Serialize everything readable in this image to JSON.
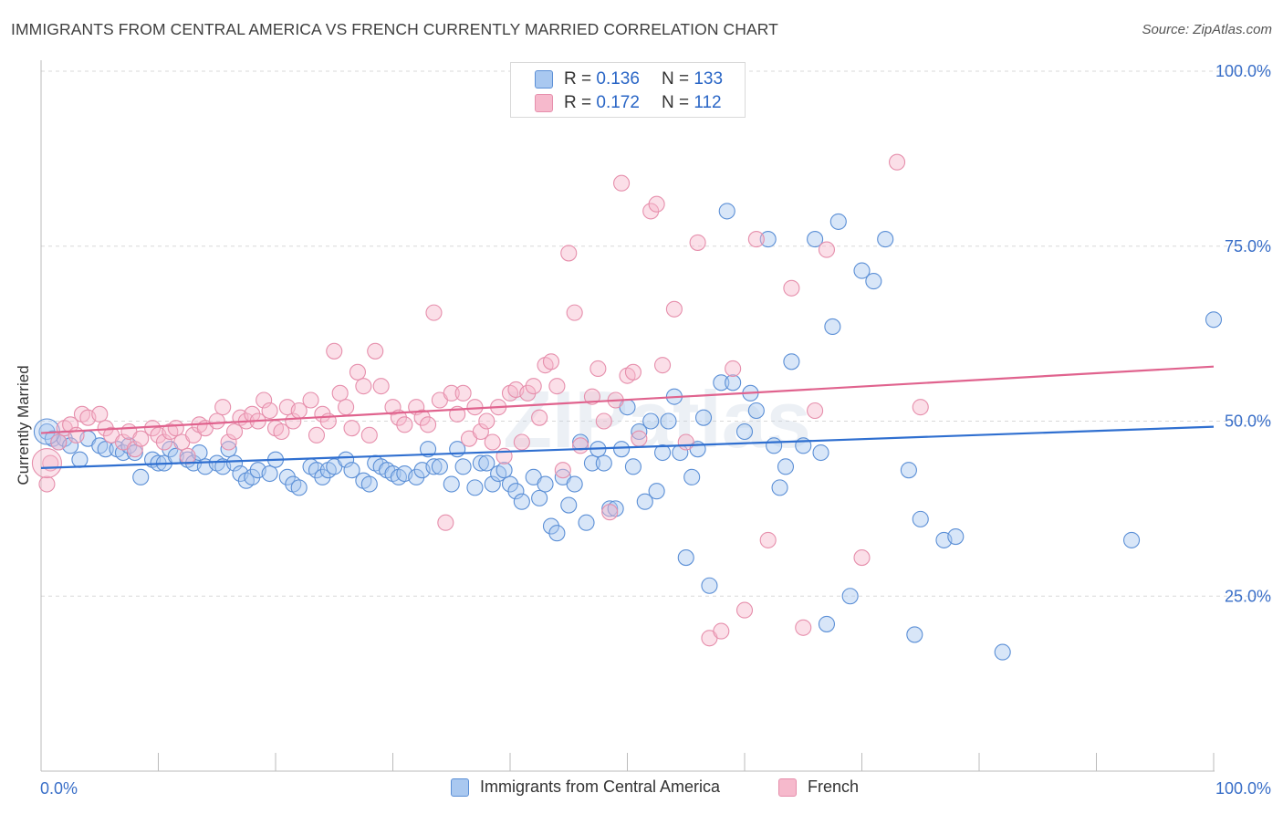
{
  "header": {
    "title": "IMMIGRANTS FROM CENTRAL AMERICA VS FRENCH CURRENTLY MARRIED CORRELATION CHART",
    "source": "Source: ZipAtlas.com"
  },
  "watermark": "ZIPatlas",
  "legend": {
    "rows": [
      {
        "r_label": "R =",
        "r_value": "0.136",
        "n_label": "N =",
        "n_value": "133"
      },
      {
        "r_label": "R =",
        "r_value": "0.172",
        "n_label": "N =",
        "n_value": "112"
      }
    ]
  },
  "colors": {
    "blue_fill": "#a9c8f0",
    "blue_stroke": "#5b8fd6",
    "blue_line": "#2f6fd0",
    "pink_fill": "#f6b9cc",
    "pink_stroke": "#e68fac",
    "pink_line": "#e0638e",
    "axis_label": "#3a6fc8",
    "grid": "#d8d8d8"
  },
  "chart_data": {
    "type": "scatter",
    "title": "IMMIGRANTS FROM CENTRAL AMERICA VS FRENCH CURRENTLY MARRIED CORRELATION CHART",
    "xlabel": "",
    "ylabel": "Currently Married",
    "xlim": [
      0,
      100
    ],
    "ylim": [
      0,
      100
    ],
    "x_tick_labels": [
      "0.0%",
      "100.0%"
    ],
    "y_tick_labels": [
      "25.0%",
      "50.0%",
      "75.0%",
      "100.0%"
    ],
    "y_ticks": [
      25,
      50,
      75,
      100
    ],
    "grid": true,
    "legend_position": "top-center",
    "series": [
      {
        "name": "Immigrants from Central America",
        "r": 0.136,
        "n": 133,
        "trend": {
          "x0": 0,
          "y0": 43.3,
          "x1": 100,
          "y1": 49.2
        },
        "points": [
          [
            0.5,
            48.5
          ],
          [
            1,
            47.5
          ],
          [
            1.5,
            47
          ],
          [
            2,
            47.5
          ],
          [
            2.5,
            46.5
          ],
          [
            3.3,
            44.5
          ],
          [
            4,
            47.5
          ],
          [
            5,
            46.5
          ],
          [
            5.5,
            46
          ],
          [
            6.5,
            46
          ],
          [
            7,
            45.5
          ],
          [
            7.5,
            46.5
          ],
          [
            8,
            45.5
          ],
          [
            8.5,
            42
          ],
          [
            9.5,
            44.5
          ],
          [
            10,
            44
          ],
          [
            10.5,
            44
          ],
          [
            11,
            46
          ],
          [
            11.5,
            45
          ],
          [
            12.5,
            44.5
          ],
          [
            13,
            44
          ],
          [
            13.5,
            45.5
          ],
          [
            14,
            43.5
          ],
          [
            15,
            44
          ],
          [
            15.5,
            43.5
          ],
          [
            16,
            46
          ],
          [
            16.5,
            44
          ],
          [
            17,
            42.5
          ],
          [
            17.5,
            41.5
          ],
          [
            18,
            42
          ],
          [
            18.5,
            43
          ],
          [
            19.5,
            42.5
          ],
          [
            20,
            44.5
          ],
          [
            21,
            42
          ],
          [
            21.5,
            41
          ],
          [
            22,
            40.5
          ],
          [
            23,
            43.5
          ],
          [
            23.5,
            43
          ],
          [
            24,
            42
          ],
          [
            24.5,
            43
          ],
          [
            25,
            43.5
          ],
          [
            26,
            44.5
          ],
          [
            26.5,
            43
          ],
          [
            27.5,
            41.5
          ],
          [
            28,
            41
          ],
          [
            28.5,
            44
          ],
          [
            29,
            43.5
          ],
          [
            29.5,
            43
          ],
          [
            30,
            42.5
          ],
          [
            30.5,
            42
          ],
          [
            31,
            42.5
          ],
          [
            32,
            42
          ],
          [
            32.5,
            43
          ],
          [
            33,
            46
          ],
          [
            33.5,
            43.5
          ],
          [
            34,
            43.5
          ],
          [
            35,
            41
          ],
          [
            35.5,
            46
          ],
          [
            36,
            43.5
          ],
          [
            37,
            40.5
          ],
          [
            37.5,
            44
          ],
          [
            38,
            44
          ],
          [
            38.5,
            41
          ],
          [
            39,
            42.5
          ],
          [
            39.5,
            43
          ],
          [
            40,
            41
          ],
          [
            40.5,
            40
          ],
          [
            41,
            38.5
          ],
          [
            42,
            42
          ],
          [
            42.5,
            39
          ],
          [
            43,
            41
          ],
          [
            43.5,
            35
          ],
          [
            44,
            34
          ],
          [
            44.5,
            42
          ],
          [
            45,
            38
          ],
          [
            45.5,
            41
          ],
          [
            46,
            47
          ],
          [
            46.5,
            35.5
          ],
          [
            47,
            44
          ],
          [
            47.5,
            46
          ],
          [
            48,
            44
          ],
          [
            48.5,
            37.5
          ],
          [
            49,
            37.5
          ],
          [
            49.5,
            46
          ],
          [
            50,
            52
          ],
          [
            50.5,
            43.5
          ],
          [
            51,
            48.5
          ],
          [
            51.5,
            38.5
          ],
          [
            52,
            50
          ],
          [
            52.5,
            40
          ],
          [
            53,
            45.5
          ],
          [
            53.5,
            50
          ],
          [
            54,
            53.5
          ],
          [
            54.5,
            45.5
          ],
          [
            55,
            30.5
          ],
          [
            55.5,
            42
          ],
          [
            56,
            46
          ],
          [
            56.5,
            50.5
          ],
          [
            57,
            26.5
          ],
          [
            58,
            55.5
          ],
          [
            58.5,
            80
          ],
          [
            59,
            55.5
          ],
          [
            60,
            48.5
          ],
          [
            60.5,
            54
          ],
          [
            61,
            51.5
          ],
          [
            62,
            76
          ],
          [
            62.5,
            46.5
          ],
          [
            63,
            40.5
          ],
          [
            63.5,
            43.5
          ],
          [
            64,
            58.5
          ],
          [
            65,
            46.5
          ],
          [
            66,
            76
          ],
          [
            66.5,
            45.5
          ],
          [
            67,
            21
          ],
          [
            67.5,
            63.5
          ],
          [
            68,
            78.5
          ],
          [
            69,
            25
          ],
          [
            70,
            71.5
          ],
          [
            71,
            70
          ],
          [
            72,
            76
          ],
          [
            74,
            43
          ],
          [
            74.5,
            19.5
          ],
          [
            75,
            36
          ],
          [
            77,
            33
          ],
          [
            78,
            33.5
          ],
          [
            82,
            17
          ],
          [
            93,
            33
          ],
          [
            100,
            64.5
          ]
        ]
      },
      {
        "name": "French",
        "r": 0.172,
        "n": 112,
        "trend": {
          "x0": 0,
          "y0": 48.3,
          "x1": 100,
          "y1": 57.8
        },
        "points": [
          [
            0.5,
            41
          ],
          [
            0.8,
            44
          ],
          [
            1.5,
            47
          ],
          [
            2,
            49
          ],
          [
            2.5,
            49.5
          ],
          [
            3,
            48
          ],
          [
            3.5,
            51
          ],
          [
            4,
            50.5
          ],
          [
            5,
            51
          ],
          [
            5.5,
            49
          ],
          [
            6,
            48
          ],
          [
            7,
            47
          ],
          [
            7.5,
            48.5
          ],
          [
            8,
            46
          ],
          [
            8.5,
            47.5
          ],
          [
            9.5,
            49
          ],
          [
            10,
            48
          ],
          [
            10.5,
            47
          ],
          [
            11,
            48.5
          ],
          [
            11.5,
            49
          ],
          [
            12,
            47
          ],
          [
            12.5,
            45
          ],
          [
            13,
            48
          ],
          [
            13.5,
            49.5
          ],
          [
            14,
            49
          ],
          [
            15,
            50
          ],
          [
            15.5,
            52
          ],
          [
            16,
            47
          ],
          [
            16.5,
            48.5
          ],
          [
            17,
            50.5
          ],
          [
            17.5,
            50
          ],
          [
            18,
            51
          ],
          [
            18.5,
            50
          ],
          [
            19,
            53
          ],
          [
            19.5,
            51.5
          ],
          [
            20,
            49
          ],
          [
            20.5,
            48.5
          ],
          [
            21,
            52
          ],
          [
            21.5,
            50
          ],
          [
            22,
            51.5
          ],
          [
            23,
            53
          ],
          [
            23.5,
            48
          ],
          [
            24,
            51
          ],
          [
            24.5,
            50
          ],
          [
            25,
            60
          ],
          [
            25.5,
            54
          ],
          [
            26,
            52
          ],
          [
            26.5,
            49
          ],
          [
            27,
            57
          ],
          [
            27.5,
            55
          ],
          [
            28,
            48
          ],
          [
            28.5,
            60
          ],
          [
            29,
            55
          ],
          [
            30,
            52
          ],
          [
            30.5,
            50.5
          ],
          [
            31,
            49.5
          ],
          [
            32,
            52
          ],
          [
            32.5,
            50.5
          ],
          [
            33,
            49.5
          ],
          [
            33.5,
            65.5
          ],
          [
            34,
            53
          ],
          [
            34.5,
            35.5
          ],
          [
            35,
            54
          ],
          [
            35.5,
            51
          ],
          [
            36,
            54
          ],
          [
            36.5,
            47.5
          ],
          [
            37,
            52
          ],
          [
            37.5,
            48.5
          ],
          [
            38,
            50
          ],
          [
            38.5,
            47
          ],
          [
            39,
            52
          ],
          [
            39.5,
            45
          ],
          [
            40,
            54
          ],
          [
            40.5,
            54.5
          ],
          [
            41,
            47
          ],
          [
            41.5,
            54
          ],
          [
            42,
            55
          ],
          [
            42.5,
            50.5
          ],
          [
            43,
            58
          ],
          [
            43.5,
            58.5
          ],
          [
            44,
            55
          ],
          [
            44.5,
            43
          ],
          [
            45,
            74
          ],
          [
            45.5,
            65.5
          ],
          [
            46,
            46.5
          ],
          [
            47,
            53.5
          ],
          [
            47.5,
            57.5
          ],
          [
            48,
            50
          ],
          [
            48.5,
            37
          ],
          [
            49,
            53
          ],
          [
            49.5,
            84
          ],
          [
            50,
            56.5
          ],
          [
            50.5,
            57
          ],
          [
            51,
            47.5
          ],
          [
            52,
            80
          ],
          [
            52.5,
            81
          ],
          [
            53,
            58
          ],
          [
            54,
            66
          ],
          [
            55,
            47
          ],
          [
            56,
            75.5
          ],
          [
            57,
            19
          ],
          [
            58,
            20
          ],
          [
            59,
            57.5
          ],
          [
            60,
            23
          ],
          [
            61,
            76
          ],
          [
            62,
            33
          ],
          [
            64,
            69
          ],
          [
            65,
            20.5
          ],
          [
            66,
            51.5
          ],
          [
            67,
            74.5
          ],
          [
            70,
            30.5
          ],
          [
            73,
            87
          ],
          [
            75,
            52
          ]
        ]
      }
    ]
  },
  "bottom_legend": {
    "items": [
      {
        "label": "Immigrants from Central America"
      },
      {
        "label": "French"
      }
    ]
  }
}
